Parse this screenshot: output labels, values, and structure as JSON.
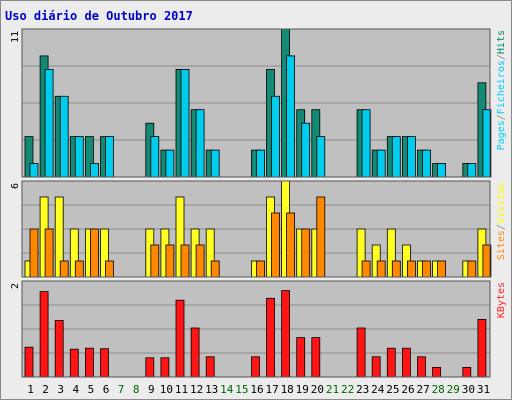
{
  "chart_data": {
    "type": "bar",
    "title": "Uso diário de Outubro 2017",
    "categories": [
      "1",
      "2",
      "3",
      "4",
      "5",
      "6",
      "7",
      "8",
      "9",
      "10",
      "11",
      "12",
      "13",
      "14",
      "15",
      "16",
      "17",
      "18",
      "19",
      "20",
      "21",
      "22",
      "23",
      "24",
      "25",
      "26",
      "27",
      "28",
      "29",
      "30",
      "31"
    ],
    "weekend_days": [
      "7",
      "8",
      "14",
      "15",
      "21",
      "22",
      "28",
      "29"
    ],
    "x_axis_label_colors": {
      "weekday": "#000000",
      "weekend": "#006600"
    },
    "panels": [
      {
        "name": "pages-files-hits",
        "axis_label": "11",
        "ylim": [
          0,
          11
        ],
        "legend": [
          "Pages",
          "/",
          "Ficheiros",
          "/",
          "Hits"
        ],
        "legend_colors": [
          "#00ccff",
          "#888888",
          "#00ccff",
          "#888888",
          "#008866"
        ],
        "series": [
          {
            "name": "Hits",
            "color": "#128a74",
            "values": [
              3,
              9,
              6,
              3,
              3,
              3,
              0,
              0,
              4,
              2,
              8,
              5,
              2,
              0,
              0,
              2,
              8,
              11,
              5,
              5,
              0,
              0,
              5,
              2,
              3,
              3,
              2,
              1,
              0,
              1,
              7
            ]
          },
          {
            "name": "Ficheiros",
            "color": "#00ccee",
            "values": [
              1,
              8,
              6,
              3,
              1,
              3,
              0,
              0,
              3,
              2,
              8,
              5,
              2,
              0,
              0,
              2,
              6,
              9,
              4,
              3,
              0,
              0,
              5,
              2,
              3,
              3,
              2,
              1,
              0,
              1,
              5
            ]
          }
        ]
      },
      {
        "name": "visits-sites",
        "axis_label": "6",
        "ylim": [
          0,
          6
        ],
        "legend": [
          "Sites",
          "/",
          "Visitas"
        ],
        "legend_colors": [
          "#ff8800",
          "#888888",
          "#ffff00"
        ],
        "series": [
          {
            "name": "Visitas",
            "color": "#ffff22",
            "values": [
              1,
              5,
              5,
              3,
              3,
              3,
              0,
              0,
              3,
              3,
              5,
              3,
              3,
              0,
              0,
              1,
              5,
              6,
              3,
              3,
              0,
              0,
              3,
              2,
              3,
              2,
              1,
              1,
              0,
              1,
              3
            ]
          },
          {
            "name": "Sites",
            "color": "#ff8800",
            "values": [
              3,
              3,
              1,
              1,
              3,
              1,
              0,
              0,
              2,
              2,
              2,
              2,
              1,
              0,
              0,
              1,
              4,
              4,
              3,
              5,
              0,
              0,
              1,
              1,
              1,
              1,
              1,
              1,
              0,
              1,
              2
            ]
          }
        ]
      },
      {
        "name": "kbytes",
        "axis_label": "2",
        "ylim": [
          0,
          2
        ],
        "legend": [
          "KBytes"
        ],
        "legend_colors": [
          "#ff2222"
        ],
        "series": [
          {
            "name": "KBytes",
            "color": "#ff1515",
            "values": [
              0.62,
              1.78,
              1.18,
              0.58,
              0.6,
              0.59,
              0,
              0,
              0.4,
              0.4,
              1.6,
              1.02,
              0.42,
              0,
              0,
              0.42,
              1.64,
              1.8,
              0.82,
              0.82,
              0,
              0,
              1.02,
              0.42,
              0.6,
              0.6,
              0.42,
              0.2,
              0,
              0.2,
              1.2
            ]
          }
        ]
      }
    ]
  }
}
